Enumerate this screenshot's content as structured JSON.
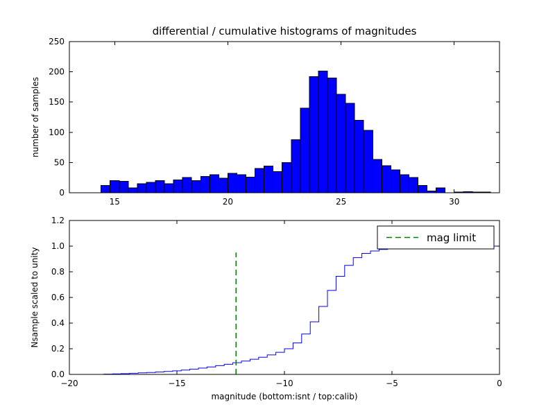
{
  "figure": {
    "background": "#ffffff",
    "title": "differential / cumulative histograms of magnitudes"
  },
  "chart_data": [
    {
      "type": "bar",
      "title": "differential / cumulative histograms of magnitudes",
      "ylabel": "number of samples",
      "bar_fill": "#0000ff",
      "bar_edge": "#000000",
      "xlim": [
        13,
        32
      ],
      "ylim": [
        0,
        250
      ],
      "xticks": {
        "values": [
          15,
          20,
          25,
          30
        ],
        "labels": [
          "15",
          "20",
          "25",
          "30"
        ]
      },
      "yticks": {
        "values": [
          0,
          50,
          100,
          150,
          200,
          250
        ],
        "labels": [
          "0",
          "50",
          "100",
          "150",
          "200",
          "250"
        ]
      },
      "bin_start": 14.4,
      "bin_width": 0.4,
      "counts": [
        12,
        20,
        19,
        8,
        15,
        17,
        20,
        15,
        21,
        25,
        20,
        27,
        30,
        24,
        32,
        30,
        26,
        40,
        44,
        35,
        50,
        88,
        140,
        192,
        201,
        190,
        163,
        148,
        120,
        103,
        55,
        45,
        38,
        30,
        25,
        12,
        3,
        8,
        0,
        1,
        2,
        1,
        1
      ]
    },
    {
      "type": "step",
      "ylabel": "Nsample scaled to unity",
      "xlabel": "magnitude (bottom:isnt / top:calib)",
      "line_color": "#0000ff",
      "xlim": [
        -20,
        0
      ],
      "ylim": [
        0,
        1.2
      ],
      "xticks": {
        "values": [
          -20,
          -15,
          -10,
          -5,
          0
        ],
        "labels": [
          "−20",
          "−15",
          "−10",
          "−5",
          "0"
        ]
      },
      "yticks": {
        "values": [
          0,
          0.2,
          0.4,
          0.6,
          0.8,
          1.0,
          1.2
        ],
        "labels": [
          "0.0",
          "0.2",
          "0.4",
          "0.6",
          "0.8",
          "1.0",
          "1.2"
        ]
      },
      "steps": [
        [
          -20,
          0
        ],
        [
          -18.4,
          0.002
        ],
        [
          -18.0,
          0.004
        ],
        [
          -17.6,
          0.006
        ],
        [
          -17.2,
          0.009
        ],
        [
          -16.8,
          0.012
        ],
        [
          -16.4,
          0.015
        ],
        [
          -16.0,
          0.019
        ],
        [
          -15.6,
          0.023
        ],
        [
          -15.2,
          0.028
        ],
        [
          -14.8,
          0.034
        ],
        [
          -14.4,
          0.041
        ],
        [
          -14.0,
          0.049
        ],
        [
          -13.6,
          0.058
        ],
        [
          -13.2,
          0.068
        ],
        [
          -12.8,
          0.079
        ],
        [
          -12.4,
          0.091
        ],
        [
          -12.0,
          0.104
        ],
        [
          -11.6,
          0.118
        ],
        [
          -11.2,
          0.134
        ],
        [
          -10.8,
          0.152
        ],
        [
          -10.4,
          0.172
        ],
        [
          -10.0,
          0.2
        ],
        [
          -9.6,
          0.245
        ],
        [
          -9.2,
          0.315
        ],
        [
          -8.8,
          0.41
        ],
        [
          -8.4,
          0.53
        ],
        [
          -8.0,
          0.655
        ],
        [
          -7.6,
          0.765
        ],
        [
          -7.2,
          0.85
        ],
        [
          -6.8,
          0.91
        ],
        [
          -6.4,
          0.943
        ],
        [
          -6.0,
          0.962
        ],
        [
          -5.6,
          0.974
        ],
        [
          -5.2,
          0.982
        ],
        [
          -4.8,
          0.988
        ],
        [
          -4.4,
          0.992
        ],
        [
          -4.0,
          0.995
        ],
        [
          -3.6,
          0.997
        ],
        [
          -3.2,
          0.998
        ],
        [
          -2.8,
          0.999
        ],
        [
          -2.4,
          0.999
        ],
        [
          -2.0,
          1.0
        ],
        [
          0,
          1.0
        ]
      ],
      "mag_limit_line": {
        "x": -12.25,
        "y0": 0,
        "y1": 0.95,
        "color": "#008000",
        "style": "dashed"
      },
      "legend": {
        "location": "upper right",
        "entries": [
          {
            "label": "mag limit",
            "color": "#008000",
            "style": "dashed"
          }
        ]
      }
    }
  ]
}
